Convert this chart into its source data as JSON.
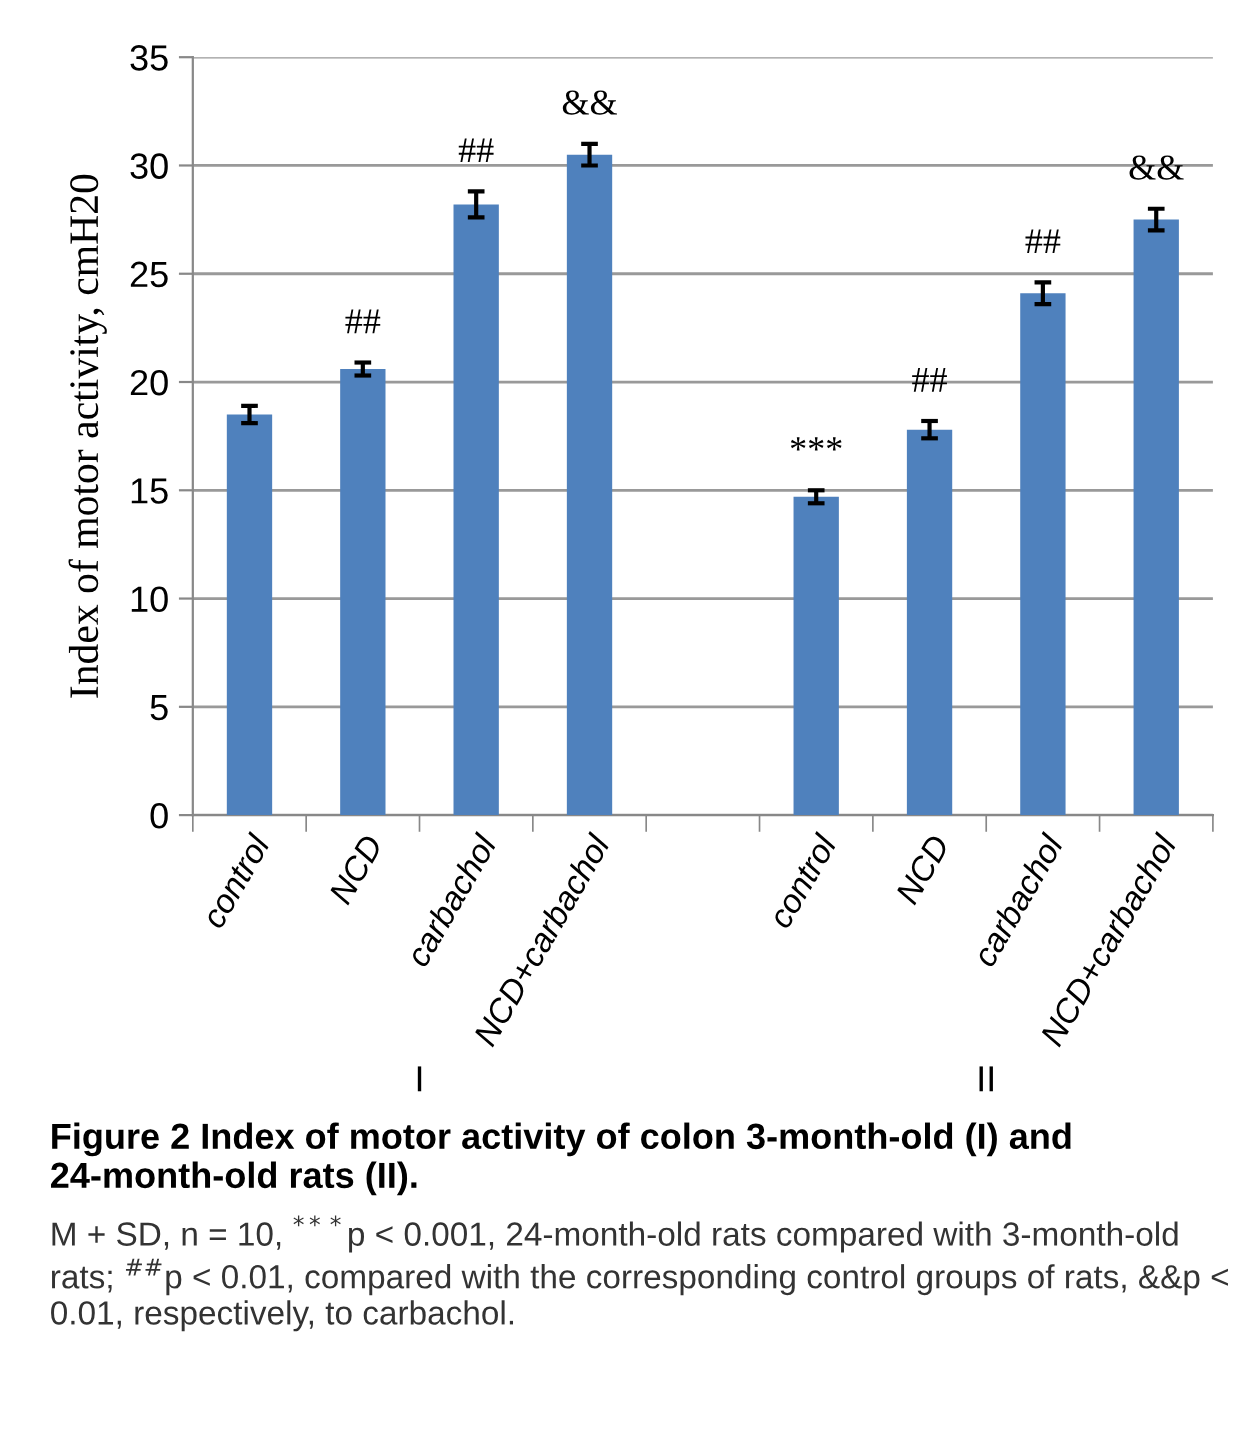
{
  "chart_data": {
    "type": "bar",
    "title": "Figure 2 Index of motor activity of colon 3-month-old (I) and 24-month-old rats (II).",
    "ylabel": "Index of motor activity, cmH20",
    "categories": [
      "control",
      "NCD",
      "carbachol",
      "NCD+carbachol",
      null,
      "control",
      "NCD",
      "carbachol",
      "NCD+carbachol"
    ],
    "values": [
      18.5,
      20.6,
      28.2,
      30.5,
      null,
      14.7,
      17.8,
      24.1,
      27.5
    ],
    "errors": [
      0.4,
      0.3,
      0.6,
      0.5,
      null,
      0.3,
      0.4,
      0.5,
      0.5
    ],
    "value_labels": [
      null,
      "##",
      "##",
      "&&",
      null,
      "***",
      "##",
      "##",
      "&&"
    ],
    "color": "#4f81bd",
    "ylim": [
      0,
      35
    ],
    "yticks": [
      0,
      5,
      10,
      15,
      20,
      25,
      30,
      35
    ],
    "grid": "y",
    "annotations": [
      "I",
      "II",
      "M + SD, n = 10, $^{***}$p < 0.001, 24-month-old rats compared with 3-month-old rats; $^{##}$p < 0.01, compared with the corresponding control groups of rats, &&p < 0.01, respectively, to carbachol."
    ]
  }
}
